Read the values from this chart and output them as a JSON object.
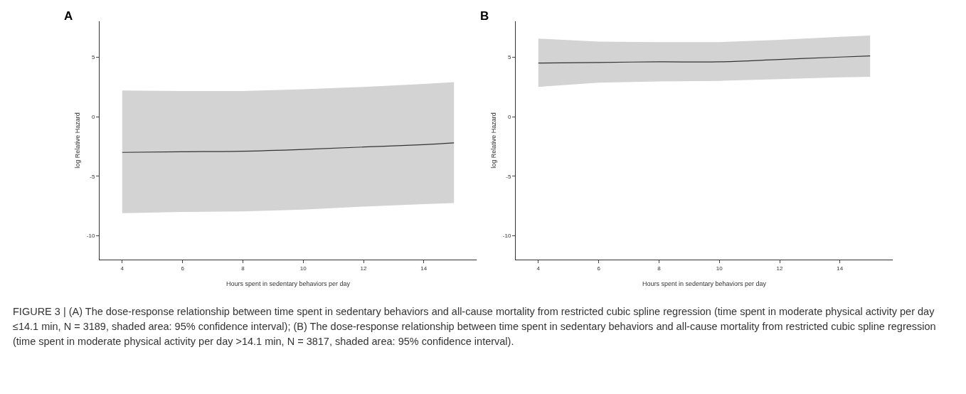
{
  "chart_data": [
    {
      "type": "line",
      "title": "A",
      "xlabel": "Hours spent in sedentary behaviors per day",
      "ylabel": "log Relative Hazard",
      "x": [
        4,
        6,
        8,
        10,
        12,
        14,
        15
      ],
      "series": [
        {
          "color": "#333333",
          "values": [
            -3.0,
            -2.95,
            -2.9,
            -2.75,
            -2.55,
            -2.35,
            -2.2
          ],
          "lower": [
            -8.1,
            -8.0,
            -7.95,
            -7.8,
            -7.55,
            -7.35,
            -7.25
          ],
          "upper": [
            2.2,
            2.15,
            2.15,
            2.3,
            2.5,
            2.75,
            2.9
          ]
        }
      ],
      "xlim": [
        3.25,
        15.75
      ],
      "xticks": [
        4,
        6,
        8,
        10,
        12,
        14
      ],
      "ylim": [
        -12,
        8
      ],
      "yticks": [
        -10,
        -5,
        0,
        5
      ],
      "grid": false,
      "annotations": [
        "FIGURE 3 | (A) The dose-response relationship between time spent in sedentary behaviors and all-cause mortality from restricted cubic spline regression (time spent in moderate physical activity per day ≤14.1 min, N = 3189, shaded area: 95% confidence interval); (B) The dose-response relationship between time spent in sedentary behaviors and all-cause mortality from restricted cubic spline regression (time spent in moderate physical activity per day >14.1 min, N = 3817, shaded area: 95% confidence interval)."
      ]
    },
    {
      "type": "line",
      "title": "B",
      "xlabel": "Hours spent in sedentary behaviors per day",
      "ylabel": "log Relative Hazard",
      "x": [
        4,
        6,
        8,
        10,
        12,
        14,
        15
      ],
      "series": [
        {
          "color": "#333333",
          "values": [
            4.5,
            4.55,
            4.6,
            4.6,
            4.8,
            5.0,
            5.1
          ],
          "lower": [
            2.5,
            2.85,
            2.95,
            3.0,
            3.15,
            3.3,
            3.35
          ],
          "upper": [
            6.55,
            6.3,
            6.25,
            6.25,
            6.45,
            6.7,
            6.8
          ]
        }
      ],
      "xlim": [
        3.25,
        15.75
      ],
      "xticks": [
        4,
        6,
        8,
        10,
        12,
        14
      ],
      "ylim": [
        -12,
        8
      ],
      "yticks": [
        -10,
        -5,
        0,
        5
      ],
      "grid": false
    }
  ]
}
